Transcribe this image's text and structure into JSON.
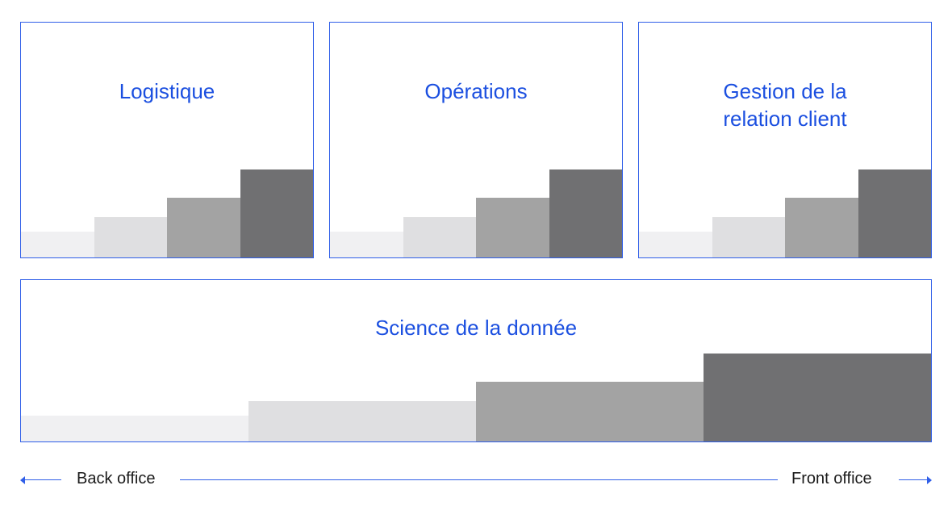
{
  "colors": {
    "accent": "#2f5ee8",
    "title_text": "#1b4fe0",
    "step_fills": [
      "#f0f0f2",
      "#dfdfe1",
      "#a3a3a3",
      "#707072"
    ]
  },
  "step_levels": [
    0.29,
    0.46,
    0.68,
    1.0
  ],
  "panels": {
    "logistique": {
      "title": "Logistique"
    },
    "operations": {
      "title": "Opérations"
    },
    "grc": {
      "title": "Gestion de la\nrelation client"
    },
    "data_science": {
      "title": "Science de la donnée"
    }
  },
  "axis": {
    "left_label": "Back office",
    "right_label": "Front office",
    "left_arrow_icon": "arrow-left-icon",
    "right_arrow_icon": "arrow-right-icon"
  }
}
